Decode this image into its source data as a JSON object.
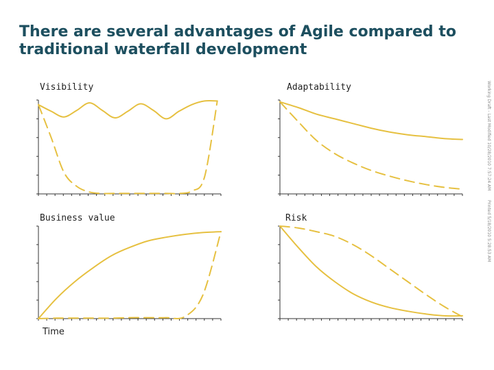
{
  "title": "There are several advantages of Agile compared to traditional waterfall development",
  "x_axis_label": "Time",
  "side_notes": [
    "Working Draft - Last Modified 10/28/2010 7:57:24 AM",
    "Printed 5/18/2010 5:28:53 AM"
  ],
  "colors": {
    "series": "#e6c040",
    "axis": "#333333",
    "title": "#1d4f5f"
  },
  "chart_data": [
    {
      "type": "line",
      "title": "Visibility",
      "xlabel": "",
      "ylabel": "",
      "grid": false,
      "legend": "none",
      "xlim": [
        0,
        10
      ],
      "ylim": [
        0,
        10
      ],
      "x": [
        0,
        0.7,
        1.4,
        2.1,
        2.8,
        3.5,
        4.2,
        4.9,
        5.6,
        6.3,
        7.0,
        7.7,
        8.4,
        9.1,
        9.8
      ],
      "series": [
        {
          "style": "solid",
          "values": [
            9.5,
            8.8,
            8.2,
            8.9,
            9.7,
            8.9,
            8.1,
            8.8,
            9.6,
            8.9,
            8.0,
            8.8,
            9.5,
            9.9,
            9.9
          ]
        },
        {
          "style": "dashed",
          "values": [
            9.5,
            6.0,
            2.3,
            0.8,
            0.2,
            0.05,
            0.05,
            0.05,
            0.05,
            0.05,
            0.05,
            0.05,
            0.3,
            1.8,
            9.9
          ]
        }
      ]
    },
    {
      "type": "line",
      "title": "Adaptability",
      "xlabel": "",
      "ylabel": "",
      "grid": false,
      "legend": "none",
      "xlim": [
        0,
        10
      ],
      "ylim": [
        0,
        10
      ],
      "x": [
        0,
        1,
        2,
        3,
        4,
        5,
        6,
        7,
        8,
        9,
        10
      ],
      "series": [
        {
          "style": "solid",
          "values": [
            9.8,
            9.2,
            8.5,
            8.0,
            7.5,
            7.0,
            6.6,
            6.3,
            6.1,
            5.9,
            5.8
          ]
        },
        {
          "style": "dashed",
          "values": [
            9.8,
            7.7,
            5.7,
            4.3,
            3.3,
            2.5,
            1.9,
            1.4,
            1.0,
            0.7,
            0.5
          ]
        }
      ]
    },
    {
      "type": "line",
      "title": "Business value",
      "xlabel": "Time",
      "ylabel": "",
      "grid": false,
      "legend": "none",
      "xlim": [
        0,
        10
      ],
      "ylim": [
        0,
        10
      ],
      "x": [
        0,
        1,
        2,
        3,
        4,
        5,
        6,
        7,
        8,
        9,
        10
      ],
      "series": [
        {
          "style": "solid",
          "values": [
            0,
            2.2,
            4.0,
            5.5,
            6.8,
            7.7,
            8.4,
            8.8,
            9.1,
            9.3,
            9.4
          ]
        },
        {
          "style": "dashed",
          "values": [
            0,
            0.05,
            0.05,
            0.05,
            0.05,
            0.1,
            0.1,
            0.1,
            0.2,
            2.5,
            9.4
          ]
        }
      ]
    },
    {
      "type": "line",
      "title": "Risk",
      "xlabel": "",
      "ylabel": "",
      "grid": false,
      "legend": "none",
      "xlim": [
        0,
        10
      ],
      "ylim": [
        0,
        10
      ],
      "x": [
        0,
        1,
        2,
        3,
        4,
        5,
        6,
        7,
        8,
        9,
        10
      ],
      "series": [
        {
          "style": "solid",
          "values": [
            10,
            7.7,
            5.6,
            4.0,
            2.7,
            1.8,
            1.2,
            0.8,
            0.5,
            0.3,
            0.3
          ]
        },
        {
          "style": "dashed",
          "values": [
            10,
            9.8,
            9.4,
            8.9,
            8.0,
            6.8,
            5.4,
            4.0,
            2.6,
            1.3,
            0.2
          ]
        }
      ]
    }
  ]
}
